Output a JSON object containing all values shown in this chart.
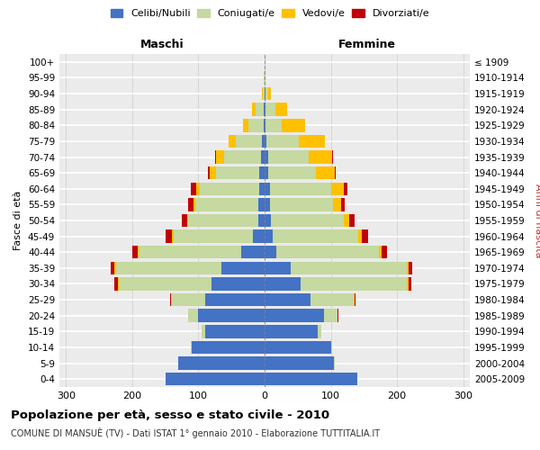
{
  "age_groups": [
    "0-4",
    "5-9",
    "10-14",
    "15-19",
    "20-24",
    "25-29",
    "30-34",
    "35-39",
    "40-44",
    "45-49",
    "50-54",
    "55-59",
    "60-64",
    "65-69",
    "70-74",
    "75-79",
    "80-84",
    "85-89",
    "90-94",
    "95-99",
    "100+"
  ],
  "birth_years": [
    "2005-2009",
    "2000-2004",
    "1995-1999",
    "1990-1994",
    "1985-1989",
    "1980-1984",
    "1975-1979",
    "1970-1974",
    "1965-1969",
    "1960-1964",
    "1955-1959",
    "1950-1954",
    "1945-1949",
    "1940-1944",
    "1935-1939",
    "1930-1934",
    "1925-1929",
    "1920-1924",
    "1915-1919",
    "1910-1914",
    "≤ 1909"
  ],
  "male_celibi": [
    150,
    130,
    110,
    90,
    100,
    90,
    80,
    65,
    35,
    18,
    10,
    10,
    8,
    8,
    6,
    4,
    2,
    2,
    0,
    0,
    0
  ],
  "male_coniugati": [
    0,
    1,
    2,
    5,
    15,
    50,
    140,
    160,
    155,
    120,
    105,
    95,
    90,
    65,
    55,
    40,
    22,
    12,
    3,
    1,
    0
  ],
  "male_vedovi": [
    0,
    0,
    0,
    0,
    0,
    1,
    2,
    2,
    2,
    2,
    2,
    3,
    5,
    10,
    12,
    10,
    8,
    5,
    1,
    0,
    0
  ],
  "male_divorziati": [
    0,
    0,
    0,
    0,
    1,
    2,
    5,
    5,
    8,
    10,
    8,
    8,
    8,
    2,
    2,
    0,
    0,
    0,
    0,
    0,
    0
  ],
  "female_nubili": [
    140,
    105,
    100,
    80,
    90,
    70,
    55,
    40,
    18,
    12,
    10,
    8,
    8,
    6,
    5,
    3,
    2,
    2,
    1,
    0,
    0
  ],
  "female_coniugate": [
    0,
    1,
    2,
    5,
    20,
    65,
    160,
    175,
    155,
    130,
    110,
    95,
    92,
    72,
    62,
    48,
    24,
    14,
    4,
    1,
    0
  ],
  "female_vedove": [
    0,
    0,
    0,
    0,
    0,
    1,
    2,
    3,
    4,
    5,
    8,
    12,
    20,
    28,
    35,
    40,
    35,
    18,
    4,
    1,
    0
  ],
  "female_divorziate": [
    0,
    0,
    0,
    0,
    1,
    2,
    5,
    5,
    8,
    10,
    8,
    6,
    5,
    2,
    2,
    0,
    0,
    0,
    0,
    0,
    0
  ],
  "colors": {
    "celibi": "#4472c4",
    "coniugati": "#c5d9a0",
    "vedovi": "#ffc000",
    "divorziati": "#c0000a"
  },
  "xlim": 310,
  "title": "Popolazione per età, sesso e stato civile - 2010",
  "subtitle": "COMUNE DI MANSUÈ (TV) - Dati ISTAT 1° gennaio 2010 - Elaborazione TUTTITALIA.IT",
  "xlabel_left": "Maschi",
  "xlabel_right": "Femmine",
  "ylabel_left": "Fasce di età",
  "ylabel_right": "Anni di nascita",
  "background_color": "#ffffff",
  "plot_bg_color": "#ebebeb",
  "grid_color": "#ffffff",
  "legend_labels": [
    "Celibi/Nubili",
    "Coniugati/e",
    "Vedovi/e",
    "Divorziati/e"
  ]
}
